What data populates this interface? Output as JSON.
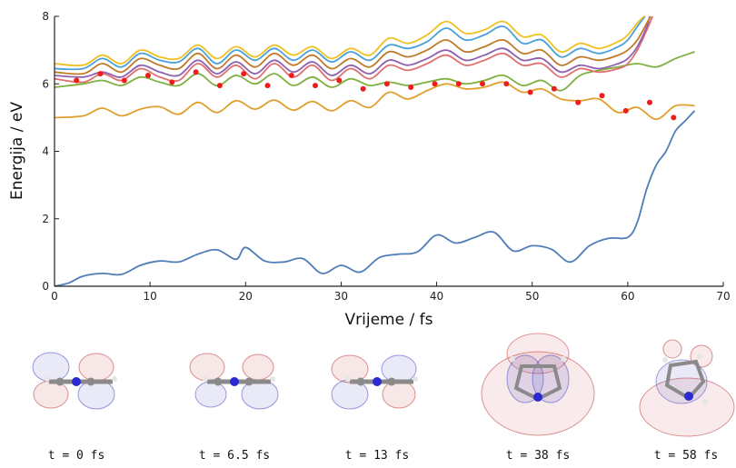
{
  "chart_data": {
    "type": "line",
    "title": "",
    "xlabel": "Vrijeme / fs",
    "ylabel": "Energija / eV",
    "xlim": [
      0,
      70
    ],
    "ylim": [
      0,
      8
    ],
    "xticks": [
      "0",
      "10",
      "20",
      "30",
      "40",
      "50",
      "60",
      "70"
    ],
    "yticks": [
      "0",
      "2",
      "4",
      "6",
      "8"
    ],
    "grid": false,
    "legend": "none",
    "series": [
      {
        "color": "#4f7db8",
        "x": [
          0,
          1.5,
          3,
          5,
          7,
          9,
          11,
          13,
          15,
          17,
          19,
          20,
          22,
          24,
          26,
          28,
          30,
          32,
          34,
          36,
          38,
          40,
          42,
          44,
          46,
          48,
          50,
          52,
          54,
          56,
          58,
          60,
          61,
          62,
          63,
          64,
          65,
          66,
          67
        ],
        "values": [
          0,
          0.1,
          0.3,
          0.38,
          0.35,
          0.62,
          0.75,
          0.72,
          0.95,
          1.08,
          0.8,
          1.15,
          0.75,
          0.72,
          0.82,
          0.38,
          0.62,
          0.42,
          0.85,
          0.95,
          1.02,
          1.52,
          1.28,
          1.45,
          1.6,
          1.05,
          1.2,
          1.1,
          0.72,
          1.2,
          1.42,
          1.45,
          1.9,
          2.9,
          3.6,
          4.0,
          4.6,
          4.9,
          5.2
        ]
      },
      {
        "color": "#e0a030",
        "x": [
          0,
          3,
          5,
          7,
          9,
          11,
          13,
          15,
          17,
          19,
          21,
          23,
          25,
          27,
          29,
          31,
          33,
          35,
          37,
          39,
          41,
          43,
          45,
          47,
          49,
          51,
          53,
          55,
          57,
          59,
          61,
          63,
          65,
          67
        ],
        "values": [
          5.0,
          5.05,
          5.28,
          5.05,
          5.25,
          5.32,
          5.1,
          5.45,
          5.15,
          5.5,
          5.25,
          5.52,
          5.22,
          5.48,
          5.2,
          5.5,
          5.3,
          5.75,
          5.55,
          5.8,
          6.0,
          5.85,
          5.9,
          6.05,
          5.75,
          5.85,
          5.55,
          5.5,
          5.55,
          5.15,
          5.3,
          4.95,
          5.35,
          5.35
        ]
      },
      {
        "color": "#7fb040",
        "x": [
          0,
          3,
          5,
          7,
          9,
          11,
          13,
          15,
          17,
          19,
          21,
          23,
          25,
          27,
          29,
          31,
          33,
          35,
          37,
          39,
          41,
          43,
          45,
          47,
          49,
          51,
          53,
          55,
          57,
          59,
          61,
          63,
          65,
          67
        ],
        "values": [
          5.9,
          6.0,
          6.1,
          5.95,
          6.2,
          6.05,
          5.95,
          6.3,
          5.95,
          6.25,
          6.0,
          6.3,
          5.95,
          6.2,
          5.9,
          6.15,
          5.95,
          6.05,
          5.95,
          6.05,
          6.15,
          6.0,
          6.1,
          6.25,
          5.95,
          6.1,
          5.8,
          6.25,
          6.4,
          6.5,
          6.6,
          6.5,
          6.75,
          6.95
        ]
      },
      {
        "color": "#e07070",
        "x": [
          0,
          3,
          5,
          7,
          9,
          11,
          13,
          15,
          17,
          19,
          21,
          23,
          25,
          27,
          29,
          31,
          33,
          35,
          37,
          39,
          41,
          43,
          45,
          47,
          49,
          51,
          53,
          55,
          57,
          59,
          60,
          61,
          62,
          62.6
        ],
        "values": [
          6.15,
          6.05,
          6.3,
          6.1,
          6.45,
          6.2,
          6.1,
          6.6,
          6.2,
          6.55,
          6.15,
          6.6,
          6.2,
          6.55,
          6.1,
          6.45,
          6.15,
          6.55,
          6.4,
          6.6,
          6.85,
          6.55,
          6.7,
          6.9,
          6.55,
          6.6,
          6.2,
          6.45,
          6.35,
          6.45,
          6.6,
          7.0,
          7.6,
          8.0
        ]
      },
      {
        "color": "#9060b0",
        "x": [
          0,
          3,
          5,
          7,
          9,
          11,
          13,
          15,
          17,
          19,
          21,
          23,
          25,
          27,
          29,
          31,
          33,
          35,
          37,
          39,
          41,
          43,
          45,
          47,
          49,
          51,
          53,
          55,
          57,
          59,
          60,
          61,
          62,
          62.3
        ],
        "values": [
          6.25,
          6.2,
          6.35,
          6.2,
          6.55,
          6.35,
          6.25,
          6.7,
          6.3,
          6.65,
          6.3,
          6.7,
          6.35,
          6.65,
          6.25,
          6.55,
          6.3,
          6.7,
          6.55,
          6.75,
          7.0,
          6.7,
          6.85,
          7.05,
          6.7,
          6.75,
          6.35,
          6.55,
          6.45,
          6.6,
          6.75,
          7.1,
          7.7,
          8.0
        ]
      },
      {
        "color": "#c07a28",
        "x": [
          0,
          3,
          5,
          7,
          9,
          11,
          13,
          15,
          17,
          19,
          21,
          23,
          25,
          27,
          29,
          31,
          33,
          35,
          37,
          39,
          41,
          43,
          45,
          47,
          49,
          51,
          53,
          55,
          57,
          59,
          60,
          61,
          62,
          62.4
        ],
        "values": [
          6.35,
          6.3,
          6.6,
          6.35,
          6.75,
          6.55,
          6.45,
          6.9,
          6.45,
          6.85,
          6.5,
          6.9,
          6.55,
          6.85,
          6.45,
          6.75,
          6.5,
          6.95,
          6.8,
          7.0,
          7.3,
          6.95,
          7.1,
          7.3,
          6.9,
          7.0,
          6.55,
          6.8,
          6.7,
          6.85,
          7.0,
          7.3,
          7.8,
          8.0
        ]
      },
      {
        "color": "#4aa0d8",
        "x": [
          0,
          3,
          5,
          7,
          9,
          11,
          13,
          15,
          17,
          19,
          21,
          23,
          25,
          27,
          29,
          31,
          33,
          35,
          37,
          39,
          41,
          43,
          45,
          47,
          49,
          51,
          53,
          55,
          57,
          59,
          60,
          61,
          61.8
        ],
        "values": [
          6.45,
          6.45,
          6.75,
          6.5,
          6.9,
          6.7,
          6.65,
          7.05,
          6.6,
          7.0,
          6.7,
          7.05,
          6.7,
          7.0,
          6.65,
          6.95,
          6.7,
          7.15,
          7.05,
          7.25,
          7.65,
          7.3,
          7.45,
          7.7,
          7.2,
          7.3,
          6.8,
          7.05,
          6.9,
          7.1,
          7.3,
          7.7,
          8.0
        ]
      },
      {
        "color": "#f0c020",
        "x": [
          0,
          3,
          5,
          7,
          9,
          11,
          13,
          15,
          17,
          19,
          21,
          23,
          25,
          27,
          29,
          31,
          33,
          35,
          37,
          39,
          41,
          43,
          45,
          47,
          49,
          51,
          53,
          55,
          57,
          59,
          60,
          61,
          61.7
        ],
        "values": [
          6.6,
          6.55,
          6.85,
          6.6,
          7.0,
          6.8,
          6.75,
          7.15,
          6.75,
          7.1,
          6.8,
          7.15,
          6.85,
          7.1,
          6.75,
          7.05,
          6.85,
          7.35,
          7.2,
          7.45,
          7.85,
          7.5,
          7.6,
          7.85,
          7.4,
          7.45,
          6.95,
          7.2,
          7.05,
          7.25,
          7.45,
          7.8,
          8.0
        ]
      }
    ],
    "markers": {
      "color": "#ee1c1c",
      "x": [
        2.3,
        4.8,
        7.3,
        9.8,
        12.3,
        14.8,
        17.3,
        19.8,
        22.3,
        24.8,
        27.3,
        29.8,
        32.3,
        34.8,
        37.3,
        39.8,
        42.3,
        44.8,
        47.3,
        49.8,
        52.3,
        54.8,
        57.3,
        59.8,
        62.3,
        64.8
      ],
      "values": [
        6.1,
        6.3,
        6.1,
        6.25,
        6.05,
        6.35,
        5.95,
        6.3,
        5.95,
        6.25,
        5.95,
        6.1,
        5.85,
        6.0,
        5.9,
        6.0,
        6.0,
        6.0,
        6.0,
        5.75,
        5.85,
        5.45,
        5.65,
        5.2,
        5.45,
        5.0
      ]
    }
  },
  "captions": [
    "t = 0 fs",
    "t = 6.5 fs",
    "t = 13 fs",
    "t = 38 fs",
    "t = 58 fs"
  ],
  "colors": {
    "orbital_pos": "#c23b3b",
    "orbital_neg": "#4a4ac8",
    "carbon": "#8a8a8a",
    "hydrogen": "#e6e6e6",
    "nitrogen": "#2a2ad0"
  }
}
